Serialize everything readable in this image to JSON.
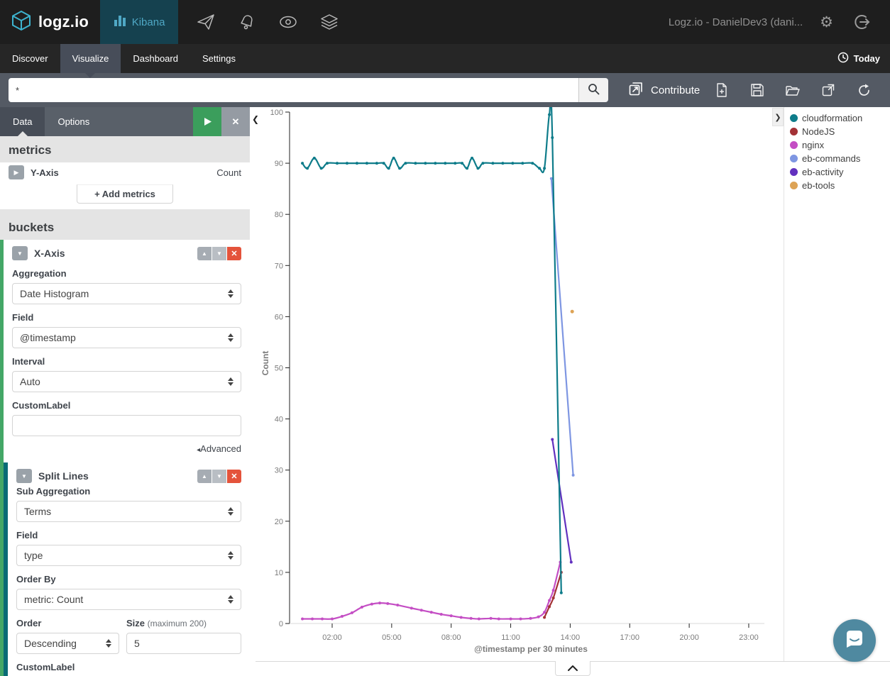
{
  "topbar": {
    "brand": "logz.io",
    "product": "Kibana",
    "account": "Logz.io - DanielDev3 (dani...",
    "nav_icons": [
      "paper-plane",
      "bell",
      "eye",
      "layers"
    ],
    "right_icons": [
      "gear",
      "sign-out"
    ]
  },
  "nav": {
    "items": [
      "Discover",
      "Visualize",
      "Dashboard",
      "Settings"
    ],
    "active": "Visualize",
    "time_label": "Today"
  },
  "querybar": {
    "query": "*",
    "contribute": "Contribute",
    "toolbar_icons": [
      "new-document",
      "save",
      "open-folder",
      "share",
      "refresh"
    ]
  },
  "sidebar": {
    "tabs": [
      "Data",
      "Options"
    ],
    "active_tab": "Data",
    "metrics": {
      "heading": "metrics",
      "y_axis_label": "Y-Axis",
      "y_axis_value": "Count",
      "add_button": "+ Add metrics"
    },
    "buckets": {
      "heading": "buckets",
      "x_axis": {
        "title": "X-Axis",
        "aggregation_label": "Aggregation",
        "aggregation": "Date Histogram",
        "field_label": "Field",
        "field": "@timestamp",
        "interval_label": "Interval",
        "interval": "Auto",
        "custom_label_label": "CustomLabel",
        "custom_label_value": "",
        "advanced_label": "Advanced"
      },
      "split_lines": {
        "title": "Split Lines",
        "sub_aggregation_label": "Sub Aggregation",
        "sub_aggregation": "Terms",
        "field_label": "Field",
        "field": "type",
        "order_by_label": "Order By",
        "order_by": "metric: Count",
        "order_label": "Order",
        "order": "Descending",
        "size_label": "Size",
        "size_hint": "(maximum 200)",
        "size_value": "5",
        "custom_label_label": "CustomLabel",
        "custom_label_value": ""
      }
    }
  },
  "chart_data": {
    "type": "line",
    "title": "",
    "xlabel": "@timestamp per 30 minutes",
    "ylabel": "Count",
    "ylim": [
      0,
      100
    ],
    "grid": false,
    "legend_position": "right",
    "y_ticks": [
      0,
      10,
      20,
      30,
      40,
      50,
      60,
      70,
      80,
      90,
      100
    ],
    "x_ticks": [
      {
        "h": 2,
        "label": "02:00"
      },
      {
        "h": 5,
        "label": "05:00"
      },
      {
        "h": 8,
        "label": "08:00"
      },
      {
        "h": 11,
        "label": "11:00"
      },
      {
        "h": 14,
        "label": "14:00"
      },
      {
        "h": 17,
        "label": "17:00"
      },
      {
        "h": 20,
        "label": "20:00"
      },
      {
        "h": 23,
        "label": "23:00"
      }
    ],
    "series": [
      {
        "name": "cloudformation",
        "color": "#0e7c8a",
        "points": [
          [
            0.5,
            90
          ],
          [
            0.75,
            89
          ],
          [
            1.1,
            91
          ],
          [
            1.45,
            89
          ],
          [
            1.75,
            90
          ],
          [
            2.25,
            90
          ],
          [
            2.75,
            90
          ],
          [
            3.25,
            90
          ],
          [
            3.75,
            90
          ],
          [
            4.25,
            90
          ],
          [
            4.6,
            90
          ],
          [
            4.85,
            89
          ],
          [
            5.1,
            91
          ],
          [
            5.4,
            89
          ],
          [
            5.7,
            90
          ],
          [
            6.2,
            90
          ],
          [
            6.7,
            90
          ],
          [
            7.2,
            90
          ],
          [
            7.7,
            90
          ],
          [
            8.2,
            90
          ],
          [
            8.55,
            90
          ],
          [
            8.8,
            89
          ],
          [
            9.05,
            91
          ],
          [
            9.35,
            89
          ],
          [
            9.6,
            90
          ],
          [
            10.1,
            90
          ],
          [
            10.6,
            90
          ],
          [
            11.1,
            90
          ],
          [
            11.6,
            90
          ],
          [
            12.1,
            90
          ],
          [
            12.45,
            89
          ],
          [
            12.7,
            89
          ],
          [
            12.95,
            99.5
          ],
          [
            13.1,
            95
          ],
          [
            13.55,
            6
          ]
        ]
      },
      {
        "name": "NodeJS",
        "color": "#a33236",
        "points": [
          [
            12.7,
            1.2
          ],
          [
            12.95,
            3.3
          ],
          [
            13.15,
            5.0
          ],
          [
            13.55,
            10
          ]
        ]
      },
      {
        "name": "nginx",
        "color": "#c44ec4",
        "points": [
          [
            0.5,
            0.9
          ],
          [
            1.0,
            0.9
          ],
          [
            1.5,
            0.9
          ],
          [
            2.0,
            0.9
          ],
          [
            2.5,
            1.4
          ],
          [
            3.0,
            2.1
          ],
          [
            3.5,
            3.2
          ],
          [
            4.0,
            3.8
          ],
          [
            4.4,
            4.0
          ],
          [
            4.8,
            3.9
          ],
          [
            5.3,
            3.6
          ],
          [
            6.0,
            3.0
          ],
          [
            6.5,
            2.6
          ],
          [
            7.0,
            2.2
          ],
          [
            7.5,
            1.8
          ],
          [
            8.0,
            1.5
          ],
          [
            8.5,
            1.2
          ],
          [
            9.0,
            1.0
          ],
          [
            9.4,
            0.9
          ],
          [
            10.0,
            1.0
          ],
          [
            10.4,
            0.9
          ],
          [
            11.0,
            0.9
          ],
          [
            11.5,
            0.9
          ],
          [
            12.0,
            1.0
          ],
          [
            12.4,
            1.3
          ],
          [
            12.7,
            2.2
          ],
          [
            12.95,
            4.5
          ],
          [
            13.15,
            6.5
          ],
          [
            13.5,
            12
          ]
        ]
      },
      {
        "name": "eb-commands",
        "color": "#7e96e2",
        "points": [
          [
            13.05,
            87
          ],
          [
            14.15,
            29
          ]
        ]
      },
      {
        "name": "eb-activity",
        "color": "#6231bf",
        "points": [
          [
            13.1,
            36
          ],
          [
            14.05,
            12
          ]
        ]
      },
      {
        "name": "eb-tools",
        "color": "#dda355",
        "points": [
          [
            14.1,
            61
          ]
        ]
      }
    ]
  },
  "colors": {
    "accent_green": "#3b9e5c",
    "danger_red": "#e4533b",
    "split_border_teal": "#0a6b76",
    "bucket_border_green": "#44a767",
    "kibana_blue": "#4fa8c5",
    "chat_bubble": "#4f89a0"
  }
}
